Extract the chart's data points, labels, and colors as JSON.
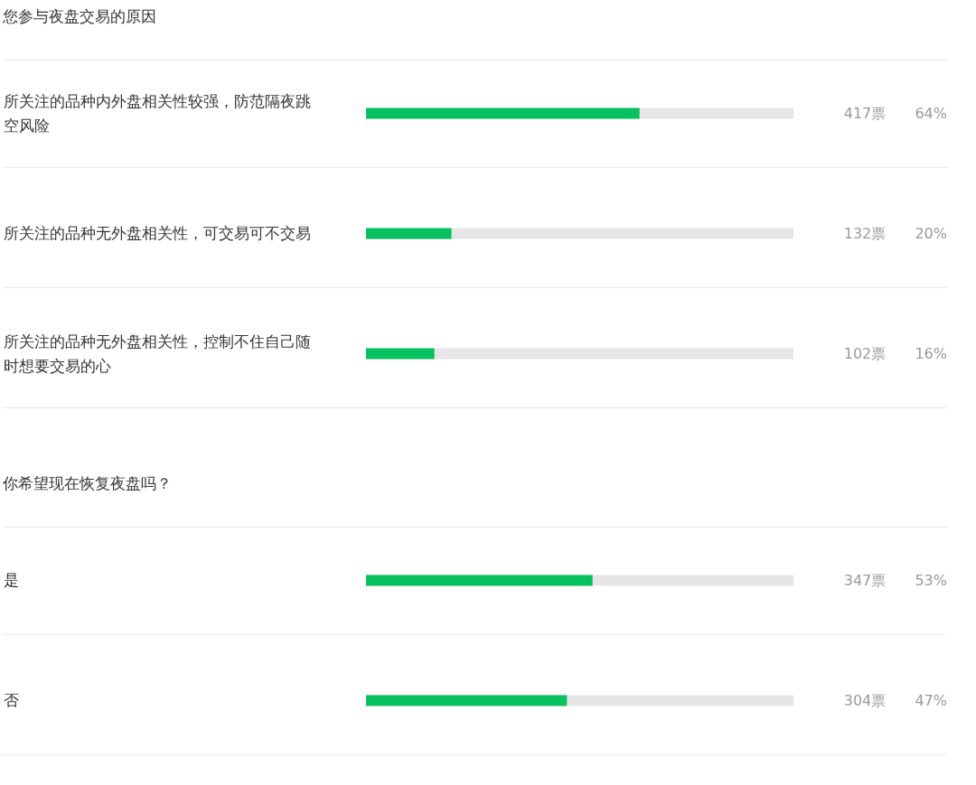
{
  "chart_data": [
    {
      "type": "bar",
      "orientation": "horizontal",
      "title": "您参与夜盘交易的原因",
      "categories": [
        "所关注的品种内外盘相关性较强，防范隔夜跳空风险",
        "所关注的品种无外盘相关性，可交易可不交易",
        "所关注的品种无外盘相关性，控制不住自己随时想要交易的心"
      ],
      "values": [
        64,
        20,
        16
      ],
      "value_labels": [
        "64%",
        "20%",
        "16%"
      ],
      "annotations": [
        "417票",
        "132票",
        "102票"
      ],
      "color": "#07c160",
      "tick_labels": "y",
      "grid": "y"
    },
    {
      "type": "bar",
      "orientation": "horizontal",
      "title": "你希望现在恢复夜盘吗？",
      "categories": [
        "是",
        "否"
      ],
      "values": [
        53,
        47
      ],
      "value_labels": [
        "53%",
        "47%"
      ],
      "annotations": [
        "347票",
        "304票"
      ],
      "color": "#07c160",
      "tick_labels": "y",
      "grid": "y"
    }
  ]
}
